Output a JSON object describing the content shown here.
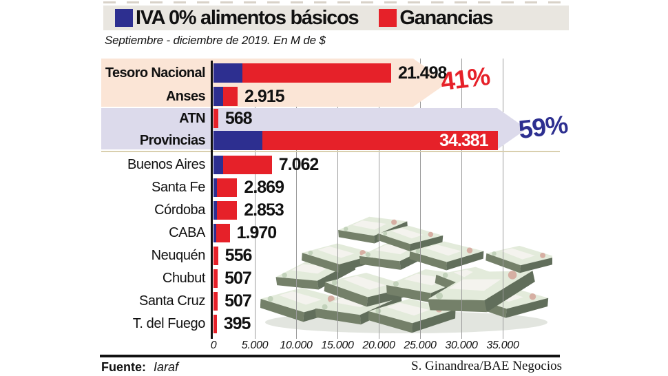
{
  "legend": {
    "items": [
      {
        "label": "IVA 0% alimentos básicos",
        "color": "#2d2f90"
      },
      {
        "label": "Ganancias",
        "color": "#e62129"
      }
    ]
  },
  "subtitle": "Septiembre - diciembre de 2019. En M de $",
  "annotations": {
    "nacion_pct": "41%",
    "provincias_pct": "59%"
  },
  "footer": {
    "source_label": "Fuente:",
    "source_value": "Iaraf",
    "credit": "S. Ginandrea/BAE Negocios"
  },
  "chart_data": {
    "type": "bar",
    "orientation": "horizontal",
    "stacked": true,
    "title": "IVA 0% alimentos básicos / Ganancias",
    "subtitle": "Septiembre - diciembre de 2019. En M de $",
    "unit": "M de $",
    "xlim": [
      0,
      36000
    ],
    "x_ticks": [
      "0",
      "5.000",
      "10.000",
      "15.000",
      "20.000",
      "25.000",
      "30.000",
      "35.000"
    ],
    "grid": true,
    "legend_position": "top",
    "categories": [
      "Tesoro Nacional",
      "Anses",
      "ATN",
      "Provincias",
      "Buenos Aires",
      "Santa Fe",
      "Córdoba",
      "CABA",
      "Neuquén",
      "Chubut",
      "Santa Cruz",
      "T. del Fuego"
    ],
    "series": [
      {
        "name": "IVA 0% alimentos básicos",
        "color": "#2d2f90",
        "values": [
          3500,
          1150,
          0,
          5900,
          1150,
          420,
          420,
          330,
          0,
          0,
          0,
          0
        ]
      },
      {
        "name": "Ganancias",
        "color": "#e62129",
        "values": [
          17998,
          1765,
          568,
          28481,
          5912,
          2449,
          2433,
          1640,
          556,
          507,
          507,
          395
        ]
      }
    ],
    "rows": [
      {
        "label": "Tesoro Nacional",
        "total": 21498,
        "total_label": "21.498",
        "iva": 3500,
        "bold_label": true,
        "value_inside": false
      },
      {
        "label": "Anses",
        "total": 2915,
        "total_label": "2.915",
        "iva": 1150,
        "bold_label": true,
        "value_inside": false
      },
      {
        "label": "ATN",
        "total": 568,
        "total_label": "568",
        "iva": 0,
        "bold_label": true,
        "value_inside": false
      },
      {
        "label": "Provincias",
        "total": 34381,
        "total_label": "34.381",
        "iva": 5900,
        "bold_label": true,
        "value_inside": true
      },
      {
        "label": "Buenos Aires",
        "total": 7062,
        "total_label": "7.062",
        "iva": 1150,
        "bold_label": false,
        "value_inside": false
      },
      {
        "label": "Santa Fe",
        "total": 2869,
        "total_label": "2.869",
        "iva": 420,
        "bold_label": false,
        "value_inside": false
      },
      {
        "label": "Córdoba",
        "total": 2853,
        "total_label": "2.853",
        "iva": 420,
        "bold_label": false,
        "value_inside": false
      },
      {
        "label": "CABA",
        "total": 1970,
        "total_label": "1.970",
        "iva": 330,
        "bold_label": false,
        "value_inside": false
      },
      {
        "label": "Neuquén",
        "total": 556,
        "total_label": "556",
        "iva": 0,
        "bold_label": false,
        "value_inside": false
      },
      {
        "label": "Chubut",
        "total": 507,
        "total_label": "507",
        "iva": 0,
        "bold_label": false,
        "value_inside": false
      },
      {
        "label": "Santa Cruz",
        "total": 507,
        "total_label": "507",
        "iva": 0,
        "bold_label": false,
        "value_inside": false
      },
      {
        "label": "T. del Fuego",
        "total": 395,
        "total_label": "395",
        "iva": 0,
        "bold_label": false,
        "value_inside": false
      }
    ],
    "group_annotations": [
      {
        "label": "41%",
        "applies_to": [
          "Tesoro Nacional",
          "Anses"
        ],
        "color": "#e62129"
      },
      {
        "label": "59%",
        "applies_to": [
          "ATN",
          "Provincias"
        ],
        "color": "#2d2f90"
      }
    ]
  }
}
